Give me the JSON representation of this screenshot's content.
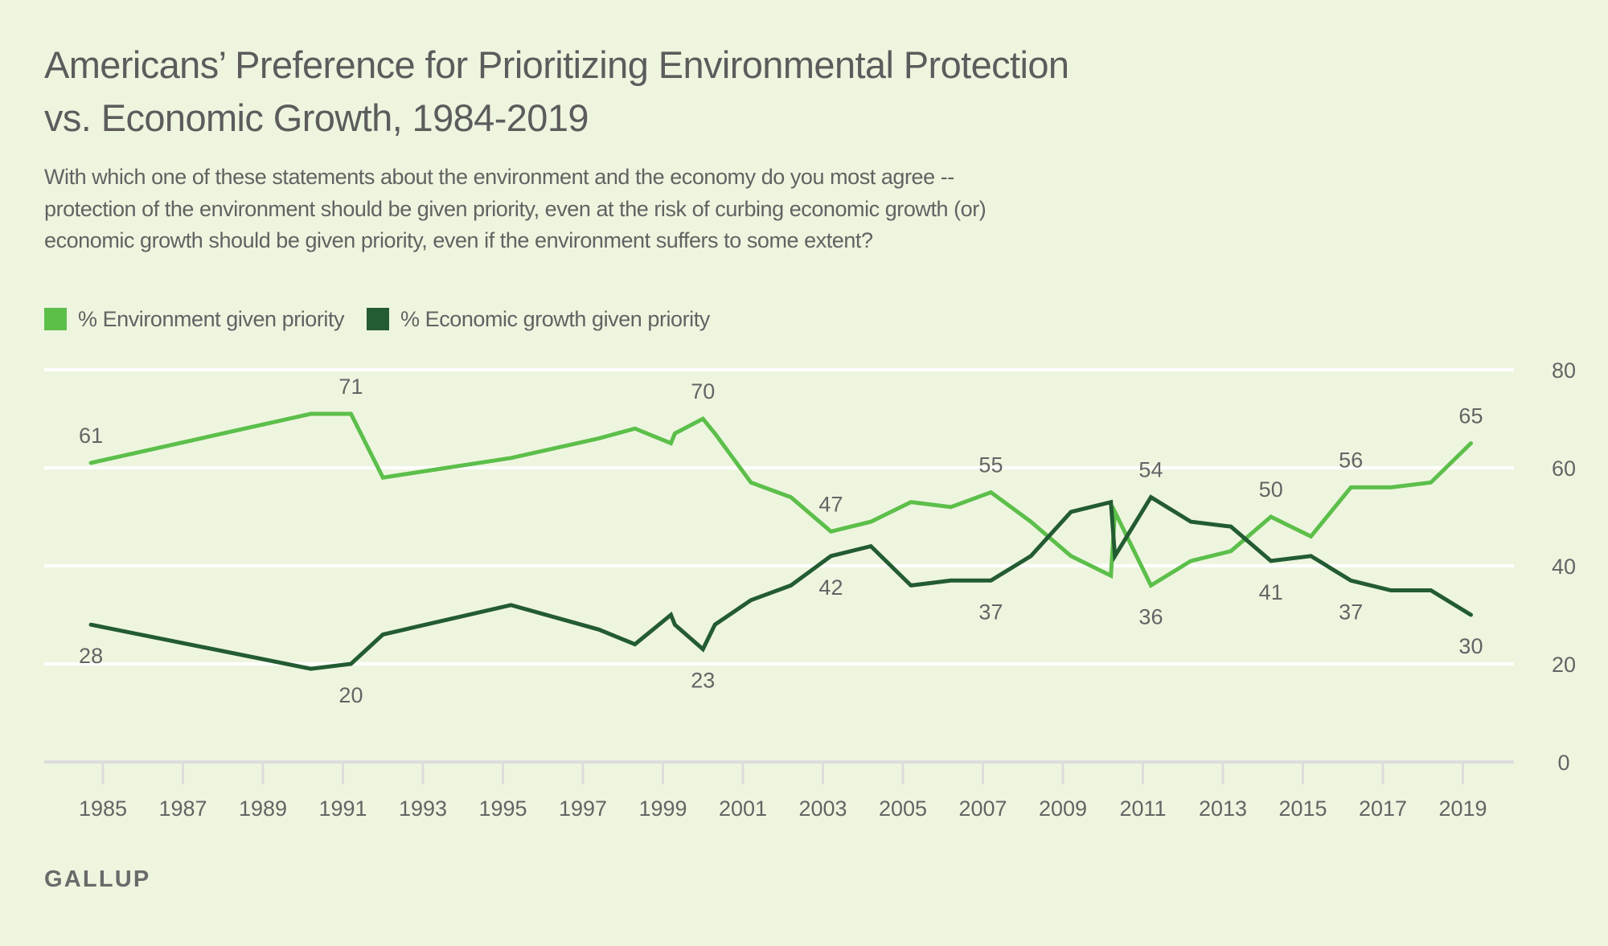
{
  "title_lines": [
    "Americans’ Preference for Prioritizing Environmental Protection",
    "vs. Economic Growth, 1984-2019"
  ],
  "subtitle_lines": [
    "With which one of these statements about the environment and the economy do you most agree --",
    "protection of the environment should be given priority, even at the risk of curbing economic growth (or)",
    "economic growth should be given priority, even if the environment suffers to some extent?"
  ],
  "legend": [
    {
      "label": "% Environment given priority",
      "color": "#5CBF4A"
    },
    {
      "label": "% Economic growth given priority",
      "color": "#235B32"
    }
  ],
  "source": "GALLUP",
  "colors": {
    "background": "#EEF5DF",
    "gridline": "#FFFFFF",
    "axis": "#DCDCDC",
    "environment": "#5CBF4A",
    "economy": "#235B32",
    "text": "#646464"
  },
  "chart_data": {
    "type": "line",
    "title": "Americans’ Preference for Prioritizing Environmental Protection vs. Economic Growth, 1984-2019",
    "xlabel": "",
    "ylabel": "",
    "xlim": [
      1983.9,
      2020.9
    ],
    "ylim": [
      0,
      80
    ],
    "yticks": [
      0,
      20,
      40,
      60,
      80
    ],
    "ytick_side": "right",
    "xticks": [
      "1985",
      "1987",
      "1989",
      "1991",
      "1993",
      "1995",
      "1997",
      "1999",
      "2001",
      "2003",
      "2005",
      "2007",
      "2009",
      "2011",
      "2013",
      "2015",
      "2017",
      "2019"
    ],
    "grid": true,
    "legend_position": "top-left",
    "x": [
      1984.7,
      1990.2,
      1991.2,
      1992.0,
      1995.2,
      1997.4,
      1998.3,
      1999.2,
      1999.3,
      2000.0,
      2000.3,
      2001.2,
      2002.2,
      2003.2,
      2004.2,
      2005.2,
      2006.2,
      2007.2,
      2008.2,
      2009.2,
      2010.2,
      2010.3,
      2011.2,
      2012.2,
      2013.2,
      2014.2,
      2015.2,
      2016.2,
      2017.2,
      2018.2,
      2019.2
    ],
    "series": [
      {
        "name": "% Environment given priority",
        "values": [
          61,
          71,
          71,
          58,
          62,
          66,
          68,
          65,
          67,
          70,
          67,
          57,
          54,
          47,
          49,
          53,
          52,
          55,
          49,
          42,
          38,
          51,
          36,
          41,
          43,
          50,
          46,
          56,
          56,
          57,
          65
        ]
      },
      {
        "name": "% Economic growth given priority",
        "values": [
          28,
          19,
          20,
          26,
          32,
          27,
          24,
          30,
          28,
          23,
          28,
          33,
          36,
          42,
          44,
          36,
          37,
          37,
          42,
          51,
          53,
          42,
          54,
          49,
          48,
          41,
          42,
          37,
          35,
          35,
          30
        ]
      }
    ],
    "annotations": [
      {
        "series": 0,
        "index": 0,
        "text": "61",
        "position": "above"
      },
      {
        "series": 0,
        "index": 2,
        "text": "71",
        "position": "above"
      },
      {
        "series": 0,
        "index": 9,
        "text": "70",
        "position": "above"
      },
      {
        "series": 0,
        "index": 13,
        "text": "47",
        "position": "above"
      },
      {
        "series": 0,
        "index": 17,
        "text": "55",
        "position": "above"
      },
      {
        "series": 0,
        "index": 25,
        "text": "50",
        "position": "above"
      },
      {
        "series": 0,
        "index": 27,
        "text": "56",
        "position": "above"
      },
      {
        "series": 0,
        "index": 30,
        "text": "65",
        "position": "above"
      },
      {
        "series": 1,
        "index": 0,
        "text": "28",
        "position": "below"
      },
      {
        "series": 1,
        "index": 2,
        "text": "20",
        "position": "below"
      },
      {
        "series": 1,
        "index": 9,
        "text": "23",
        "position": "below"
      },
      {
        "series": 1,
        "index": 13,
        "text": "42",
        "position": "below"
      },
      {
        "series": 1,
        "index": 17,
        "text": "37",
        "position": "below"
      },
      {
        "series": 1,
        "index": 22,
        "text": "54",
        "position": "above"
      },
      {
        "series": 0,
        "index": 22,
        "text": "36",
        "position": "below"
      },
      {
        "series": 1,
        "index": 25,
        "text": "41",
        "position": "below"
      },
      {
        "series": 1,
        "index": 27,
        "text": "37",
        "position": "below"
      },
      {
        "series": 1,
        "index": 30,
        "text": "30",
        "position": "below"
      }
    ]
  }
}
